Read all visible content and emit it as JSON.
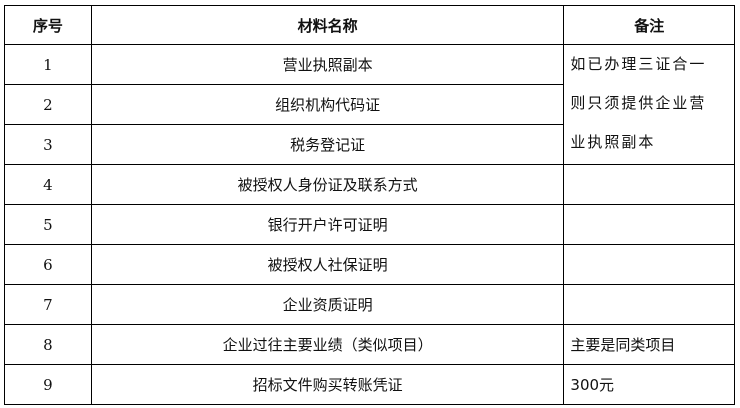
{
  "headers": {
    "index": "序号",
    "name": "材料名称",
    "note": "备注"
  },
  "rows": [
    {
      "index": "1",
      "name": "营业执照副本"
    },
    {
      "index": "2",
      "name": "组织机构代码证"
    },
    {
      "index": "3",
      "name": "税务登记证"
    },
    {
      "index": "4",
      "name": "被授权人身份证及联系方式",
      "note": ""
    },
    {
      "index": "5",
      "name": "银行开户许可证明",
      "note": ""
    },
    {
      "index": "6",
      "name": "被授权人社保证明",
      "note": ""
    },
    {
      "index": "7",
      "name": "企业资质证明",
      "note": ""
    },
    {
      "index": "8",
      "name": "企业过往主要业绩（类似项目）",
      "note": "主要是同类项目"
    },
    {
      "index": "9",
      "name": "招标文件购买转账凭证",
      "note": "300元"
    }
  ],
  "merged_note": {
    "lines": [
      "如已办理三证合一",
      "则只须提供企业营",
      "业执照副本"
    ]
  }
}
